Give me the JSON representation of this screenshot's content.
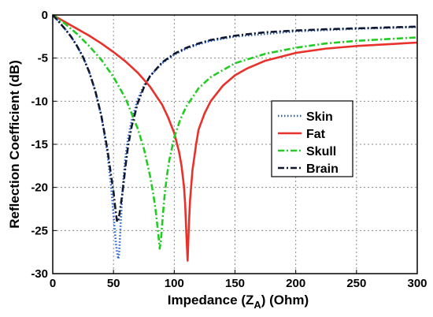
{
  "chart_data": {
    "type": "line",
    "xlabel": "Impedance (Z",
    "xlabel_sub": "A",
    "xlabel_tail": ") (Ohm)",
    "ylabel": "Reflection Coefficient (dB)",
    "xlim": [
      0,
      300
    ],
    "ylim": [
      -30,
      0
    ],
    "x_ticks": [
      0,
      50,
      100,
      150,
      200,
      250,
      300
    ],
    "y_ticks": [
      0,
      -5,
      -10,
      -15,
      -20,
      -25,
      -30
    ],
    "grid": true,
    "legend_position": "right-center",
    "series": [
      {
        "name": "Skin",
        "color": "#1f5fd6",
        "style": "dotted",
        "x": [
          0,
          5,
          10,
          15,
          20,
          25,
          30,
          35,
          40,
          45,
          48,
          50,
          52,
          53,
          54,
          54.5,
          55,
          55.5,
          56,
          57,
          58,
          60,
          62,
          65,
          70,
          75,
          80,
          90,
          100,
          110,
          120,
          130,
          150,
          175,
          200,
          225,
          250,
          275,
          300
        ],
        "y": [
          0,
          -0.78,
          -1.6,
          -2.5,
          -3.6,
          -4.9,
          -6.6,
          -8.8,
          -11.7,
          -16,
          -19.8,
          -23.2,
          -26.5,
          -27.6,
          -28.3,
          -27.8,
          -26.7,
          -25.4,
          -23.9,
          -21.3,
          -19.3,
          -16.3,
          -14.3,
          -12.2,
          -9.8,
          -8.2,
          -7.1,
          -5.6,
          -4.6,
          -3.9,
          -3.4,
          -3.0,
          -2.5,
          -2.2,
          -1.9,
          -1.75,
          -1.6,
          -1.5,
          -1.4
        ]
      },
      {
        "name": "Fat",
        "color": "#e8312a",
        "style": "solid",
        "x": [
          0,
          10,
          20,
          30,
          40,
          50,
          60,
          70,
          80,
          90,
          95,
          100,
          104,
          106,
          108,
          109,
          110,
          111,
          112,
          113,
          115,
          118,
          120,
          125,
          130,
          140,
          150,
          160,
          175,
          200,
          225,
          250,
          275,
          300
        ],
        "y": [
          0,
          -0.8,
          -1.6,
          -2.4,
          -3.3,
          -4.3,
          -5.4,
          -6.7,
          -8.3,
          -10.4,
          -11.9,
          -13.7,
          -15.9,
          -17.5,
          -19.9,
          -22,
          -25.5,
          -28.5,
          -24.5,
          -21.5,
          -18,
          -15,
          -13.3,
          -11.4,
          -10,
          -8.2,
          -7.0,
          -6.2,
          -5.3,
          -4.4,
          -3.9,
          -3.6,
          -3.4,
          -3.2
        ]
      },
      {
        "name": "Skull",
        "color": "#22cc22",
        "style": "dashdot",
        "x": [
          0,
          10,
          20,
          30,
          40,
          50,
          60,
          70,
          75,
          80,
          83,
          85,
          87,
          88,
          89,
          90,
          91,
          92,
          94,
          96,
          100,
          105,
          110,
          120,
          130,
          150,
          175,
          200,
          225,
          250,
          275,
          300
        ],
        "y": [
          0,
          -1.0,
          -2.2,
          -3.6,
          -5.2,
          -7.2,
          -9.7,
          -13.2,
          -15.5,
          -18.6,
          -21,
          -23,
          -25.6,
          -27.1,
          -26.2,
          -24.4,
          -22.6,
          -21,
          -18.6,
          -16.8,
          -14.2,
          -12.1,
          -10.6,
          -8.5,
          -7.2,
          -5.6,
          -4.5,
          -3.8,
          -3.3,
          -3.0,
          -2.8,
          -2.6
        ]
      },
      {
        "name": "Brain",
        "color": "#101830",
        "style": "dashdot",
        "x": [
          0,
          5,
          10,
          15,
          20,
          25,
          30,
          35,
          40,
          45,
          48,
          50,
          51,
          52,
          53,
          54,
          55,
          56,
          57,
          58,
          60,
          62,
          65,
          70,
          75,
          80,
          90,
          100,
          110,
          120,
          130,
          150,
          175,
          200,
          225,
          250,
          275,
          300
        ],
        "y": [
          0,
          -0.78,
          -1.6,
          -2.5,
          -3.6,
          -4.9,
          -6.6,
          -8.8,
          -11.7,
          -15.6,
          -18.6,
          -20.5,
          -21.8,
          -23,
          -24,
          -23.8,
          -23,
          -22,
          -21,
          -19.9,
          -17.4,
          -15.2,
          -12.9,
          -10.2,
          -8.4,
          -7.1,
          -5.5,
          -4.5,
          -3.8,
          -3.3,
          -2.9,
          -2.4,
          -2.0,
          -1.8,
          -1.65,
          -1.55,
          -1.45,
          -1.35
        ]
      }
    ]
  }
}
